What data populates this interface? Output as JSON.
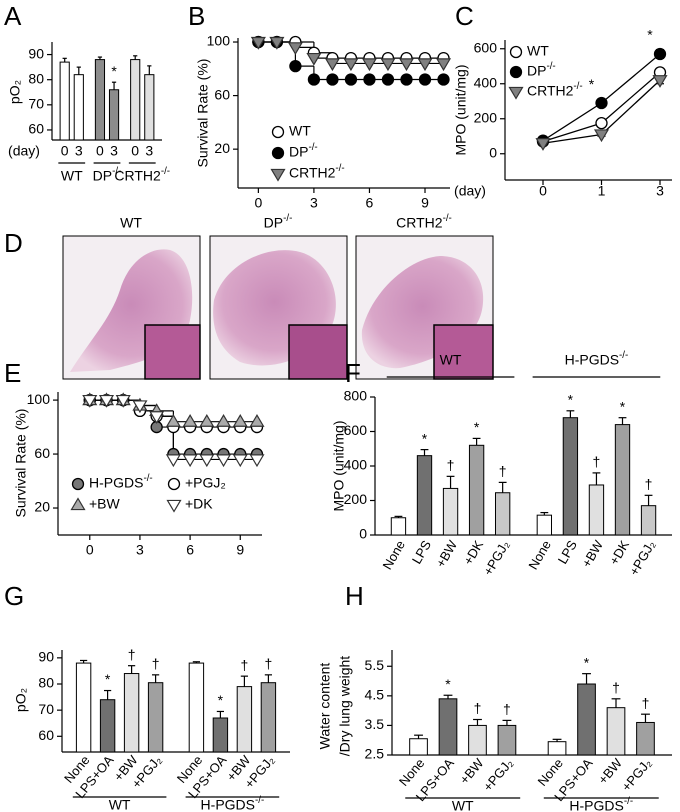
{
  "chart_data": [
    {
      "label": "A",
      "type": "bar",
      "ylabel": "pO₂",
      "x_label": "(day)",
      "ylim": [
        56,
        95
      ],
      "yticks": [
        60,
        70,
        80,
        90
      ],
      "groups": [
        {
          "name": "WT",
          "categories": [
            "0",
            "3"
          ],
          "values": [
            87,
            82
          ],
          "errors": [
            1.5,
            3
          ],
          "colors": [
            "#ffffff",
            "#ffffff"
          ],
          "annotations": [
            null,
            null
          ]
        },
        {
          "name": "DP-/-",
          "categories": [
            "0",
            "3"
          ],
          "values": [
            88,
            76
          ],
          "errors": [
            1,
            3
          ],
          "colors": [
            "#8c8c8c",
            "#8c8c8c"
          ],
          "annotations": [
            null,
            "*"
          ]
        },
        {
          "name": "CRTH2-/-",
          "categories": [
            "0",
            "3"
          ],
          "values": [
            88,
            82
          ],
          "errors": [
            1.5,
            3.5
          ],
          "colors": [
            "#e0e0e0",
            "#e0e0e0"
          ],
          "annotations": [
            null,
            null
          ]
        }
      ]
    },
    {
      "label": "B",
      "type": "step",
      "ylabel": "Survival Rate (%)",
      "x": [
        0,
        1,
        2,
        3,
        4,
        5,
        6,
        7,
        8,
        9,
        10
      ],
      "xlim": [
        -1.1,
        10.35
      ],
      "xticks": [
        0,
        3,
        6,
        9
      ],
      "ylim": [
        -9,
        103
      ],
      "yticks": [
        20,
        60,
        100
      ],
      "series": [
        {
          "name": "WT",
          "marker": "circle-open",
          "color": "#000000",
          "values": [
            100,
            100,
            100,
            92,
            88,
            88,
            88,
            88,
            88,
            88,
            88
          ]
        },
        {
          "name": "DP-/-",
          "marker": "circle",
          "color": "#000000",
          "values": [
            100,
            100,
            82,
            72,
            72,
            72,
            72,
            72,
            72,
            72,
            72
          ]
        },
        {
          "name": "CRTH2-/-",
          "marker": "triangle-down",
          "color": "#808080",
          "values": [
            100,
            100,
            96,
            88,
            84,
            84,
            84,
            84,
            84,
            84,
            84
          ]
        }
      ]
    },
    {
      "label": "C",
      "type": "line",
      "ylabel": "MPO (unit/mg)",
      "x_label": "(day)",
      "categories": [
        "0",
        "1",
        "3"
      ],
      "ylim": [
        -150,
        650
      ],
      "yticks": [
        0,
        200,
        400,
        600
      ],
      "series": [
        {
          "name": "WT",
          "marker": "circle-open",
          "color": "#000000",
          "values": [
            70,
            175,
            465
          ],
          "errors": [
            15,
            20,
            20
          ]
        },
        {
          "name": "DP-/-",
          "marker": "circle",
          "color": "#000000",
          "values": [
            75,
            290,
            570
          ],
          "errors": [
            20,
            20,
            25
          ],
          "annotations": [
            null,
            "*",
            "*"
          ]
        },
        {
          "name": "CRTH2-/-",
          "marker": "triangle-down",
          "color": "#808080",
          "values": [
            60,
            110,
            420
          ],
          "errors": [
            10,
            10,
            20
          ]
        }
      ]
    },
    {
      "label": "E",
      "type": "step",
      "ylabel": "Survival Rate (%)",
      "x": [
        0,
        1,
        2,
        3,
        4,
        5,
        6,
        7,
        8,
        9,
        10
      ],
      "xlim": [
        -1.9,
        10.3
      ],
      "xticks": [
        0,
        3,
        6,
        9
      ],
      "ylim": [
        0,
        106
      ],
      "yticks": [
        20,
        60,
        100
      ],
      "series": [
        {
          "name": "H-PGDS-/-",
          "marker": "circle",
          "color": "#777777",
          "values": [
            100,
            100,
            100,
            92,
            80,
            60,
            60,
            60,
            60,
            60,
            60
          ]
        },
        {
          "name": "+PGJ₂",
          "marker": "circle-open",
          "color": "#000000",
          "values": [
            100,
            100,
            100,
            92,
            88,
            80,
            80,
            80,
            80,
            80,
            80
          ]
        },
        {
          "name": "+BW",
          "marker": "triangle-up",
          "color": "#aaaaaa",
          "values": [
            100,
            100,
            100,
            96,
            92,
            84,
            84,
            84,
            84,
            84,
            84
          ]
        },
        {
          "name": "+DK",
          "marker": "triangle-down-open",
          "color": "#000000",
          "values": [
            100,
            100,
            100,
            96,
            88,
            56,
            56,
            56,
            56,
            56,
            56
          ]
        }
      ]
    },
    {
      "label": "F",
      "type": "bar",
      "ylabel": "MPO (unit/mg)",
      "ylim": [
        0,
        800
      ],
      "yticks": [
        0,
        200,
        400,
        600,
        800
      ],
      "groups": [
        {
          "name": "WT",
          "categories": [
            "None",
            "LPS",
            "+BW",
            "+DK",
            "+PGJ₂"
          ],
          "values": [
            100,
            460,
            270,
            520,
            245
          ],
          "errors": [
            8,
            35,
            70,
            40,
            60
          ],
          "colors": [
            "#ffffff",
            "#707070",
            "#e0e0e0",
            "#a0a0a0",
            "#c8c8c8"
          ],
          "annotations": [
            null,
            "*",
            "†",
            "*",
            "†"
          ]
        },
        {
          "name": "H-PGDS-/-",
          "categories": [
            "None",
            "LPS",
            "+BW",
            "+DK",
            "+PGJ₂"
          ],
          "values": [
            115,
            680,
            290,
            640,
            170
          ],
          "errors": [
            15,
            40,
            70,
            40,
            60
          ],
          "colors": [
            "#ffffff",
            "#707070",
            "#e0e0e0",
            "#a0a0a0",
            "#c8c8c8"
          ],
          "annotations": [
            null,
            "*",
            "†",
            "*",
            "†"
          ]
        }
      ]
    },
    {
      "label": "G",
      "type": "bar",
      "ylabel": "pO₂",
      "ylim": [
        54,
        93
      ],
      "yticks": [
        60,
        70,
        80,
        90
      ],
      "groups": [
        {
          "name": "WT",
          "categories": [
            "None",
            "LPS+OA",
            "+BW",
            "+PGJ₂"
          ],
          "values": [
            88,
            74,
            84,
            80.5
          ],
          "errors": [
            1,
            3.5,
            3,
            3
          ],
          "colors": [
            "#ffffff",
            "#707070",
            "#e0e0e0",
            "#a0a0a0"
          ],
          "annotations": [
            null,
            "*",
            "†",
            "†"
          ]
        },
        {
          "name": "H-PGDS-/-",
          "categories": [
            "None",
            "LPS+OA",
            "+BW",
            "+PGJ₂"
          ],
          "values": [
            88,
            67,
            79,
            80.5
          ],
          "errors": [
            0.5,
            2.5,
            4,
            3
          ],
          "colors": [
            "#ffffff",
            "#707070",
            "#e0e0e0",
            "#a0a0a0"
          ],
          "annotations": [
            null,
            "*",
            "†",
            "†"
          ]
        }
      ]
    },
    {
      "label": "H",
      "type": "bar",
      "ylabel": [
        "Water content",
        "/Dry lung weight"
      ],
      "ylim": [
        2.5,
        6.05
      ],
      "yticks": [
        2.5,
        3.5,
        4.5,
        5.5
      ],
      "groups": [
        {
          "name": "WT",
          "categories": [
            "None",
            "LPS+OA",
            "+BW",
            "+PGJ₂"
          ],
          "values": [
            3.05,
            4.4,
            3.5,
            3.5
          ],
          "errors": [
            0.12,
            0.12,
            0.2,
            0.17
          ],
          "colors": [
            "#ffffff",
            "#707070",
            "#e0e0e0",
            "#a0a0a0"
          ],
          "annotations": [
            null,
            "*",
            "†",
            "†"
          ]
        },
        {
          "name": "H-PGDS-/-",
          "categories": [
            "None",
            "LPS+OA",
            "+BW",
            "+PGJ₂"
          ],
          "values": [
            2.95,
            4.9,
            4.1,
            3.6
          ],
          "errors": [
            0.08,
            0.35,
            0.3,
            0.28
          ],
          "colors": [
            "#ffffff",
            "#707070",
            "#e0e0e0",
            "#a0a0a0"
          ],
          "annotations": [
            null,
            "*",
            "†",
            "†"
          ]
        }
      ]
    }
  ],
  "histology": {
    "label": "D",
    "titles": [
      "WT",
      "DP-/-",
      "CRTH2-/-"
    ]
  }
}
